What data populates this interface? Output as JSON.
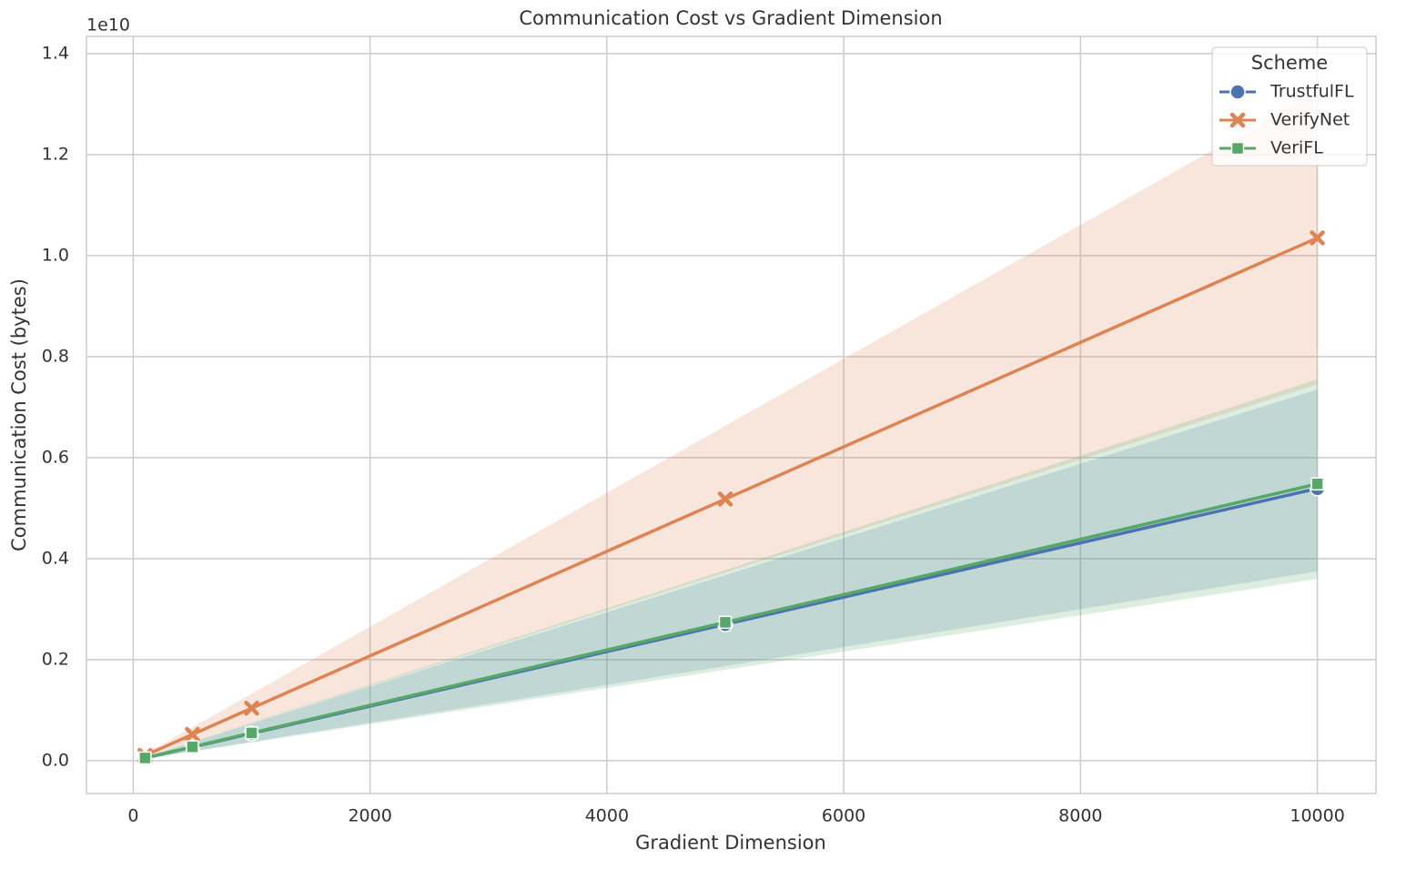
{
  "chart_data": {
    "type": "line",
    "title": "Communication Cost vs Gradient Dimension",
    "x_label": "Gradient Dimension",
    "y_label": "Communication Cost (bytes)",
    "y_offset_text": "1e10",
    "x": [
      100,
      500,
      1000,
      5000,
      10000
    ],
    "xlim": [
      -395,
      10495
    ],
    "xticks": [
      0,
      2000,
      4000,
      6000,
      8000,
      10000
    ],
    "ylim": [
      -0.065,
      1.434
    ],
    "yticks": [
      {
        "value": 0,
        "label": "0.0"
      },
      {
        "value": 0.2,
        "label": "0.2"
      },
      {
        "value": 0.4,
        "label": "0.4"
      },
      {
        "value": 0.6,
        "label": "0.6"
      },
      {
        "value": 0.8,
        "label": "0.8"
      },
      {
        "value": 1,
        "label": "1.0"
      },
      {
        "value": 1.2,
        "label": "1.2"
      },
      {
        "value": 1.4,
        "label": "1.4"
      }
    ],
    "grid": true,
    "legend_title": "Scheme",
    "legend_position": "upper right",
    "series": [
      {
        "name": "TrustfulFL",
        "color": "#4c72b0",
        "marker": "circle",
        "values": [
          0.0054,
          0.027,
          0.054,
          0.27,
          0.539
        ],
        "lower": [
          0.00375,
          0.01875,
          0.0375,
          0.1875,
          0.375
        ],
        "upper": [
          0.00735,
          0.03675,
          0.0735,
          0.3675,
          0.735
        ]
      },
      {
        "name": "VerifyNet",
        "color": "#dd8452",
        "marker": "x",
        "values": [
          0.0104,
          0.052,
          0.104,
          0.518,
          1.035
        ],
        "lower": [
          0.00745,
          0.03725,
          0.0745,
          0.3725,
          0.745
        ],
        "upper": [
          0.01326,
          0.0663,
          0.1326,
          0.663,
          1.326
        ]
      },
      {
        "name": "VeriFL",
        "color": "#55a868",
        "marker": "square",
        "values": [
          0.0055,
          0.0274,
          0.055,
          0.274,
          0.548
        ],
        "lower": [
          0.0036,
          0.018,
          0.036,
          0.18,
          0.36
        ],
        "upper": [
          0.00755,
          0.03775,
          0.0755,
          0.3775,
          0.755
        ]
      }
    ]
  }
}
